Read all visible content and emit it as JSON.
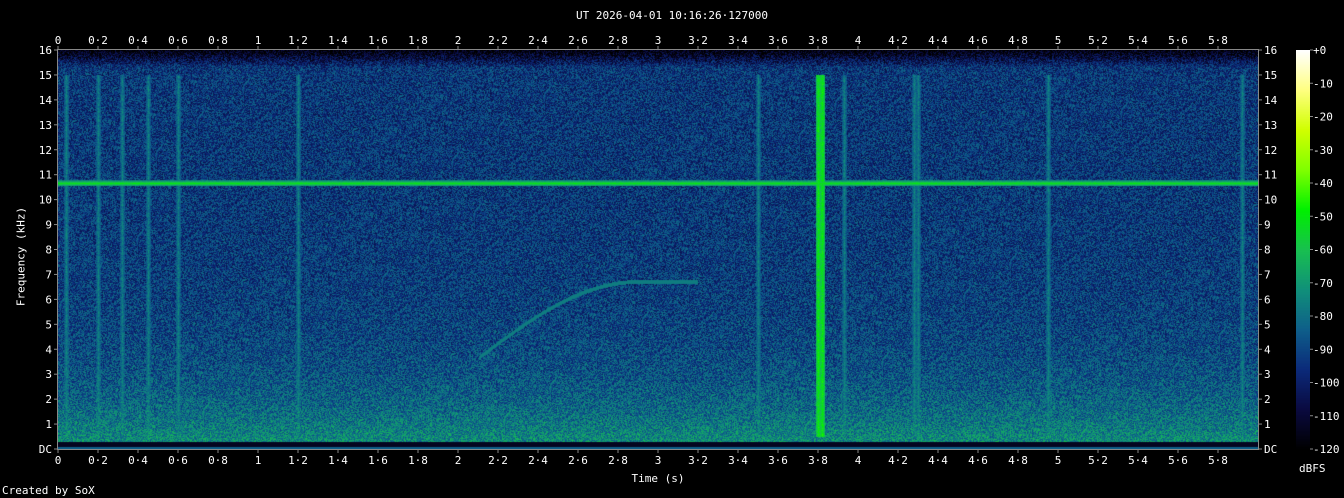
{
  "chart_data": {
    "type": "heatmap",
    "title": "UT 2026-04-01 10:16:26·127000",
    "xlabel": "Time (s)",
    "ylabel": "Frequency (kHz)",
    "colorbar_label": "dBFS",
    "xlim": [
      0,
      6.0
    ],
    "ylim": [
      0,
      16
    ],
    "zlim": [
      -120,
      0
    ],
    "x_ticks": [
      "0",
      "0·2",
      "0·4",
      "0·6",
      "0·8",
      "1",
      "1·2",
      "1·4",
      "1·6",
      "1·8",
      "2",
      "2·2",
      "2·4",
      "2·6",
      "2·8",
      "3",
      "3·2",
      "3·4",
      "3·6",
      "3·8",
      "4",
      "4·2",
      "4·4",
      "4·6",
      "4·8",
      "5",
      "5·2",
      "5·4",
      "5·6",
      "5·8"
    ],
    "y_ticks": [
      "DC",
      "1",
      "2",
      "3",
      "4",
      "5",
      "6",
      "7",
      "8",
      "9",
      "10",
      "11",
      "12",
      "13",
      "14",
      "15",
      "16"
    ],
    "colorbar_ticks": [
      "+0",
      "-10",
      "-20",
      "-30",
      "-40",
      "-50",
      "-60",
      "-70",
      "-80",
      "-90",
      "-100",
      "-110",
      "-120"
    ],
    "colormap": [
      "#000000",
      "#0a0a40",
      "#0b2a7a",
      "#0e5f8a",
      "#10907a",
      "#18c050",
      "#00f000",
      "#80ff00",
      "#d0ff00",
      "#ffff80",
      "#ffffff"
    ],
    "features": {
      "steady_tone_khz": 10.6,
      "broadband_transients_s": [
        0.04,
        0.2,
        0.32,
        0.45,
        0.6,
        1.2,
        3.5,
        3.8,
        3.82,
        3.93,
        4.28,
        4.3,
        4.95,
        5.92
      ],
      "chirp": {
        "start_s": 2.1,
        "start_khz": 3.5,
        "end_s": 2.9,
        "end_khz": 6.6
      }
    }
  },
  "footer": {
    "credit": "Created by SoX"
  }
}
